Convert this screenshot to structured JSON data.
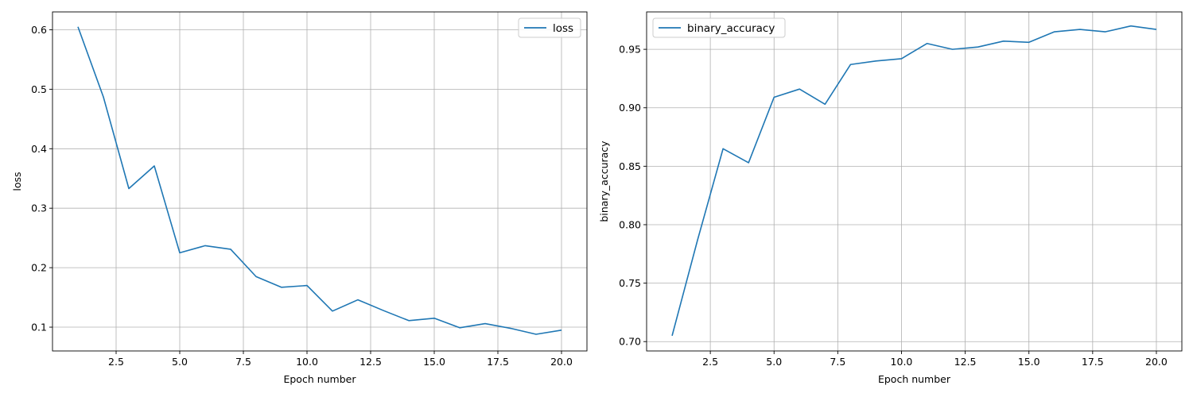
{
  "chart_data": [
    {
      "type": "line",
      "title": "",
      "xlabel": "Epoch number",
      "ylabel": "loss",
      "xlim": [
        -0.0,
        21.0
      ],
      "ylim": [
        0.06,
        0.63
      ],
      "xticks": [
        2.5,
        5.0,
        7.5,
        10.0,
        12.5,
        15.0,
        17.5,
        20.0
      ],
      "xtick_labels": [
        "2.5",
        "5.0",
        "7.5",
        "10.0",
        "12.5",
        "15.0",
        "17.5",
        "20.0"
      ],
      "yticks": [
        0.1,
        0.2,
        0.3,
        0.4,
        0.5,
        0.6
      ],
      "ytick_labels": [
        "0.1",
        "0.2",
        "0.3",
        "0.4",
        "0.5",
        "0.6"
      ],
      "grid": true,
      "legend": "top-right",
      "series": [
        {
          "name": "loss",
          "color": "#1f77b4",
          "x": [
            1,
            2,
            3,
            4,
            5,
            6,
            7,
            8,
            9,
            10,
            11,
            12,
            13,
            14,
            15,
            16,
            17,
            18,
            19,
            20
          ],
          "y": [
            0.605,
            0.487,
            0.333,
            0.371,
            0.225,
            0.237,
            0.231,
            0.185,
            0.167,
            0.17,
            0.127,
            0.146,
            0.128,
            0.111,
            0.115,
            0.099,
            0.106,
            0.098,
            0.088,
            0.095
          ]
        }
      ]
    },
    {
      "type": "line",
      "title": "",
      "xlabel": "Epoch number",
      "ylabel": "binary_accuracy",
      "xlim": [
        -0.0,
        21.0
      ],
      "ylim": [
        0.692,
        0.982
      ],
      "xticks": [
        2.5,
        5.0,
        7.5,
        10.0,
        12.5,
        15.0,
        17.5,
        20.0
      ],
      "xtick_labels": [
        "2.5",
        "5.0",
        "7.5",
        "10.0",
        "12.5",
        "15.0",
        "17.5",
        "20.0"
      ],
      "yticks": [
        0.7,
        0.75,
        0.8,
        0.85,
        0.9,
        0.95
      ],
      "ytick_labels": [
        "0.70",
        "0.75",
        "0.80",
        "0.85",
        "0.90",
        "0.95"
      ],
      "grid": true,
      "legend": "top-left",
      "series": [
        {
          "name": "binary_accuracy",
          "color": "#1f77b4",
          "x": [
            1,
            2,
            3,
            4,
            5,
            6,
            7,
            8,
            9,
            10,
            11,
            12,
            13,
            14,
            15,
            16,
            17,
            18,
            19,
            20
          ],
          "y": [
            0.705,
            0.787,
            0.865,
            0.853,
            0.909,
            0.916,
            0.903,
            0.937,
            0.94,
            0.942,
            0.955,
            0.95,
            0.952,
            0.957,
            0.956,
            0.965,
            0.967,
            0.965,
            0.97,
            0.967
          ]
        }
      ]
    }
  ]
}
